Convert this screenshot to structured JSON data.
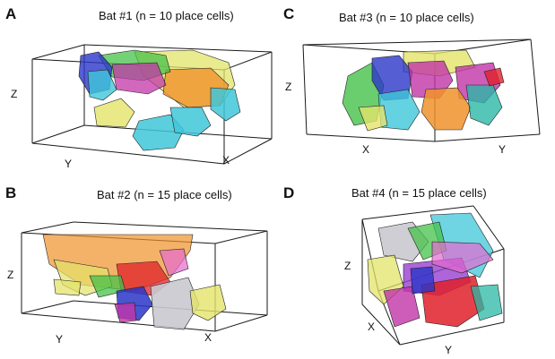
{
  "panels": [
    {
      "letter": "A",
      "title": "Bat #1 (n = 10 place cells)",
      "axes": {
        "z": "Z",
        "y": "Y",
        "x": "X"
      }
    },
    {
      "letter": "B",
      "title": "Bat #2 (n = 15 place cells)",
      "axes": {
        "z": "Z",
        "y": "Y",
        "x": "X"
      }
    },
    {
      "letter": "C",
      "title": "Bat #3 (n = 10 place cells)",
      "axes": {
        "z": "Z",
        "x": "X",
        "y": "Y"
      }
    },
    {
      "letter": "D",
      "title": "Bat #4 (n = 15 place cells)",
      "axes": {
        "z": "Z",
        "x": "X",
        "y": "Y"
      }
    }
  ],
  "colors": {
    "yellow": "#e3e36a",
    "orange": "#f0922a",
    "cyan": "#3fc7d9",
    "magenta": "#c235a8",
    "blue": "#2a36c8",
    "green": "#46c24a",
    "red": "#e0202a",
    "purple": "#9a3fd0",
    "pink": "#e56ad0",
    "teal": "#2ab8a6",
    "grey": "#c9c9cf"
  }
}
